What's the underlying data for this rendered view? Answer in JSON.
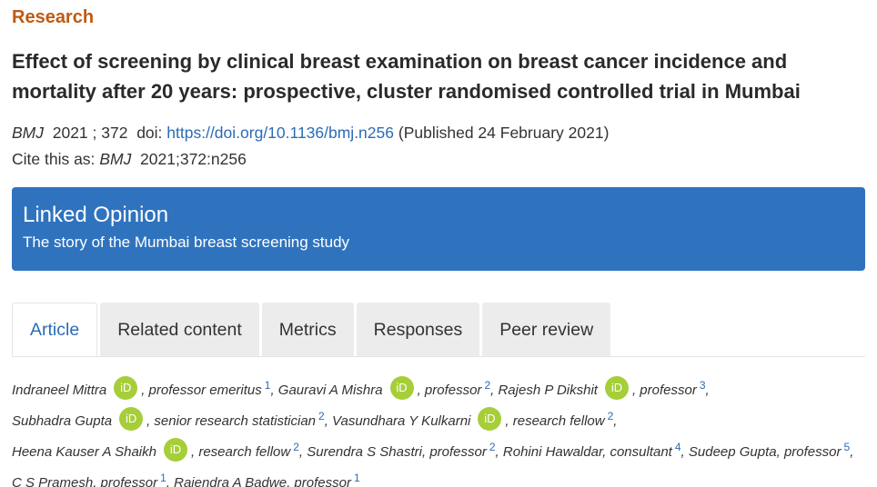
{
  "header": {
    "section": "Research",
    "title": "Effect of screening by clinical breast examination on breast cancer incidence and mortality after 20 years: prospective, cluster randomised controlled trial in Mumbai"
  },
  "citation": {
    "journal": "BMJ",
    "year_vol": "2021 ; 372",
    "doi_label": "doi:",
    "doi_link": "https://doi.org/10.1136/bmj.n256",
    "published": "(Published 24 February 2021)",
    "cite_prefix": "Cite this as:",
    "cite_journal": "BMJ",
    "cite_ref": "2021;372:n256"
  },
  "linked_opinion": {
    "heading": "Linked Opinion",
    "text": "The story of the Mumbai breast screening study"
  },
  "tabs": [
    {
      "label": "Article",
      "active": true
    },
    {
      "label": "Related content",
      "active": false
    },
    {
      "label": "Metrics",
      "active": false
    },
    {
      "label": "Responses",
      "active": false
    },
    {
      "label": "Peer review",
      "active": false
    }
  ],
  "orcid_label": "iD",
  "authors": [
    {
      "name": "Indraneel Mittra",
      "role": ", professor emeritus",
      "aff": "1",
      "sep": ",",
      "orcid": true
    },
    {
      "name": "Gauravi A Mishra",
      "role": ", professor",
      "aff": "2",
      "sep": ",",
      "orcid": true
    },
    {
      "name": "Rajesh P Dikshit",
      "role": ", professor",
      "aff": "3",
      "sep": ",",
      "orcid": true
    },
    {
      "name": "Subhadra Gupta",
      "role": ", senior research statistician",
      "aff": "2",
      "sep": ",",
      "orcid": true
    },
    {
      "name": "Vasundhara Y Kulkarni",
      "role": ", research fellow",
      "aff": "2",
      "sep": ",",
      "orcid": true
    },
    {
      "name": "Heena Kauser A Shaikh",
      "role": ", research fellow",
      "aff": "2",
      "sep": ",",
      "orcid": true
    },
    {
      "name": "Surendra S Shastri",
      "role": ", professor",
      "aff": "2",
      "sep": ",",
      "orcid": false
    },
    {
      "name": "Rohini Hawaldar",
      "role": ", consultant",
      "aff": "4",
      "sep": ",",
      "orcid": false
    },
    {
      "name": "Sudeep Gupta",
      "role": ", professor",
      "aff": "5",
      "sep": ",",
      "orcid": false
    },
    {
      "name": "C S Pramesh",
      "role": ", professor",
      "aff": "1",
      "sep": ",",
      "orcid": false
    },
    {
      "name": "Rajendra A Badwe",
      "role": ", professor",
      "aff": "1",
      "sep": "",
      "orcid": false
    }
  ],
  "colors": {
    "section_label": "#c05a11",
    "linked_box": "#2f73be",
    "link": "#2b6cb5",
    "orcid": "#a6ce39"
  }
}
